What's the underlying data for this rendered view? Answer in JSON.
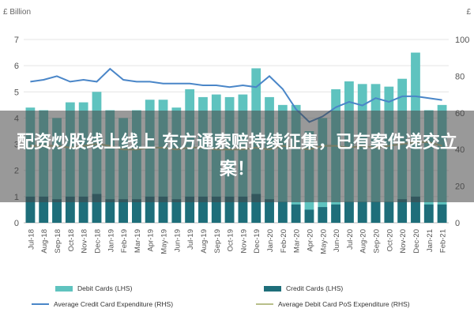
{
  "banner": {
    "text": "配资炒股线上线上 东方通索赔持续征集，已有案件递交立案！"
  },
  "chart_data": {
    "type": "bar",
    "left_axis_unit": "£ Billion",
    "right_axis_unit": "£",
    "categories": [
      "Jul-18",
      "Aug-18",
      "Sep-18",
      "Oct-18",
      "Nov-18",
      "Dec-18",
      "Jan-19",
      "Feb-19",
      "Mar-19",
      "Apr-19",
      "May-19",
      "Jun-19",
      "Jul-19",
      "Aug-19",
      "Sep-19",
      "Oct-19",
      "Nov-19",
      "Dec-19",
      "Jan-20",
      "Feb-20",
      "Mar-20",
      "Apr-20",
      "May-20",
      "Jun-20",
      "Jul-20",
      "Aug-20",
      "Sep-20",
      "Oct-20",
      "Nov-20",
      "Dec-20",
      "Jan-21",
      "Feb-21"
    ],
    "left_ylim": [
      0,
      7
    ],
    "left_yticks": [
      0,
      1,
      2,
      3,
      4,
      5,
      6,
      7
    ],
    "right_ylim": [
      0,
      100
    ],
    "right_yticks": [
      0,
      20,
      40,
      60,
      80,
      100
    ],
    "bar_series": [
      {
        "name": "Debit Cards (LHS)",
        "color": "#5fc3bf",
        "values": [
          4.4,
          4.3,
          4.0,
          4.6,
          4.6,
          5.0,
          4.3,
          4.0,
          4.3,
          4.7,
          4.7,
          4.4,
          5.1,
          4.8,
          4.9,
          4.8,
          4.9,
          5.9,
          4.8,
          4.5,
          4.5,
          3.5,
          4.0,
          5.1,
          5.4,
          5.3,
          5.3,
          5.2,
          5.5,
          6.5,
          4.3,
          4.5
        ]
      },
      {
        "name": "Credit Cards (LHS)",
        "color": "#1e6e7a",
        "values": [
          1.0,
          1.0,
          0.9,
          1.0,
          1.0,
          1.1,
          0.9,
          0.9,
          0.9,
          1.0,
          1.0,
          0.9,
          1.0,
          1.0,
          1.0,
          1.0,
          1.0,
          1.1,
          0.9,
          0.8,
          0.7,
          0.5,
          0.6,
          0.7,
          0.8,
          0.8,
          0.8,
          0.8,
          0.9,
          1.0,
          0.7,
          0.7
        ]
      }
    ],
    "line_series": [
      {
        "name": "Average Credit Card Expenditure (RHS)",
        "color": "#4a86c8",
        "values": [
          77,
          78,
          80,
          77,
          78,
          77,
          84,
          78,
          77,
          77,
          76,
          76,
          76,
          75,
          75,
          74,
          75,
          74,
          80,
          73,
          62,
          55,
          58,
          63,
          66,
          64,
          68,
          66,
          69,
          69,
          68,
          67
        ]
      },
      {
        "name": "Average Debit Card PoS Expenditure (RHS)",
        "color": "#b8bf8a",
        "values": [
          42,
          42,
          42,
          41,
          42,
          43,
          42,
          40,
          40,
          41,
          41,
          40,
          41,
          41,
          40,
          40,
          40,
          41,
          40,
          42,
          41,
          40,
          42,
          42,
          41,
          42,
          41,
          42,
          43,
          44,
          44,
          42
        ]
      }
    ]
  }
}
